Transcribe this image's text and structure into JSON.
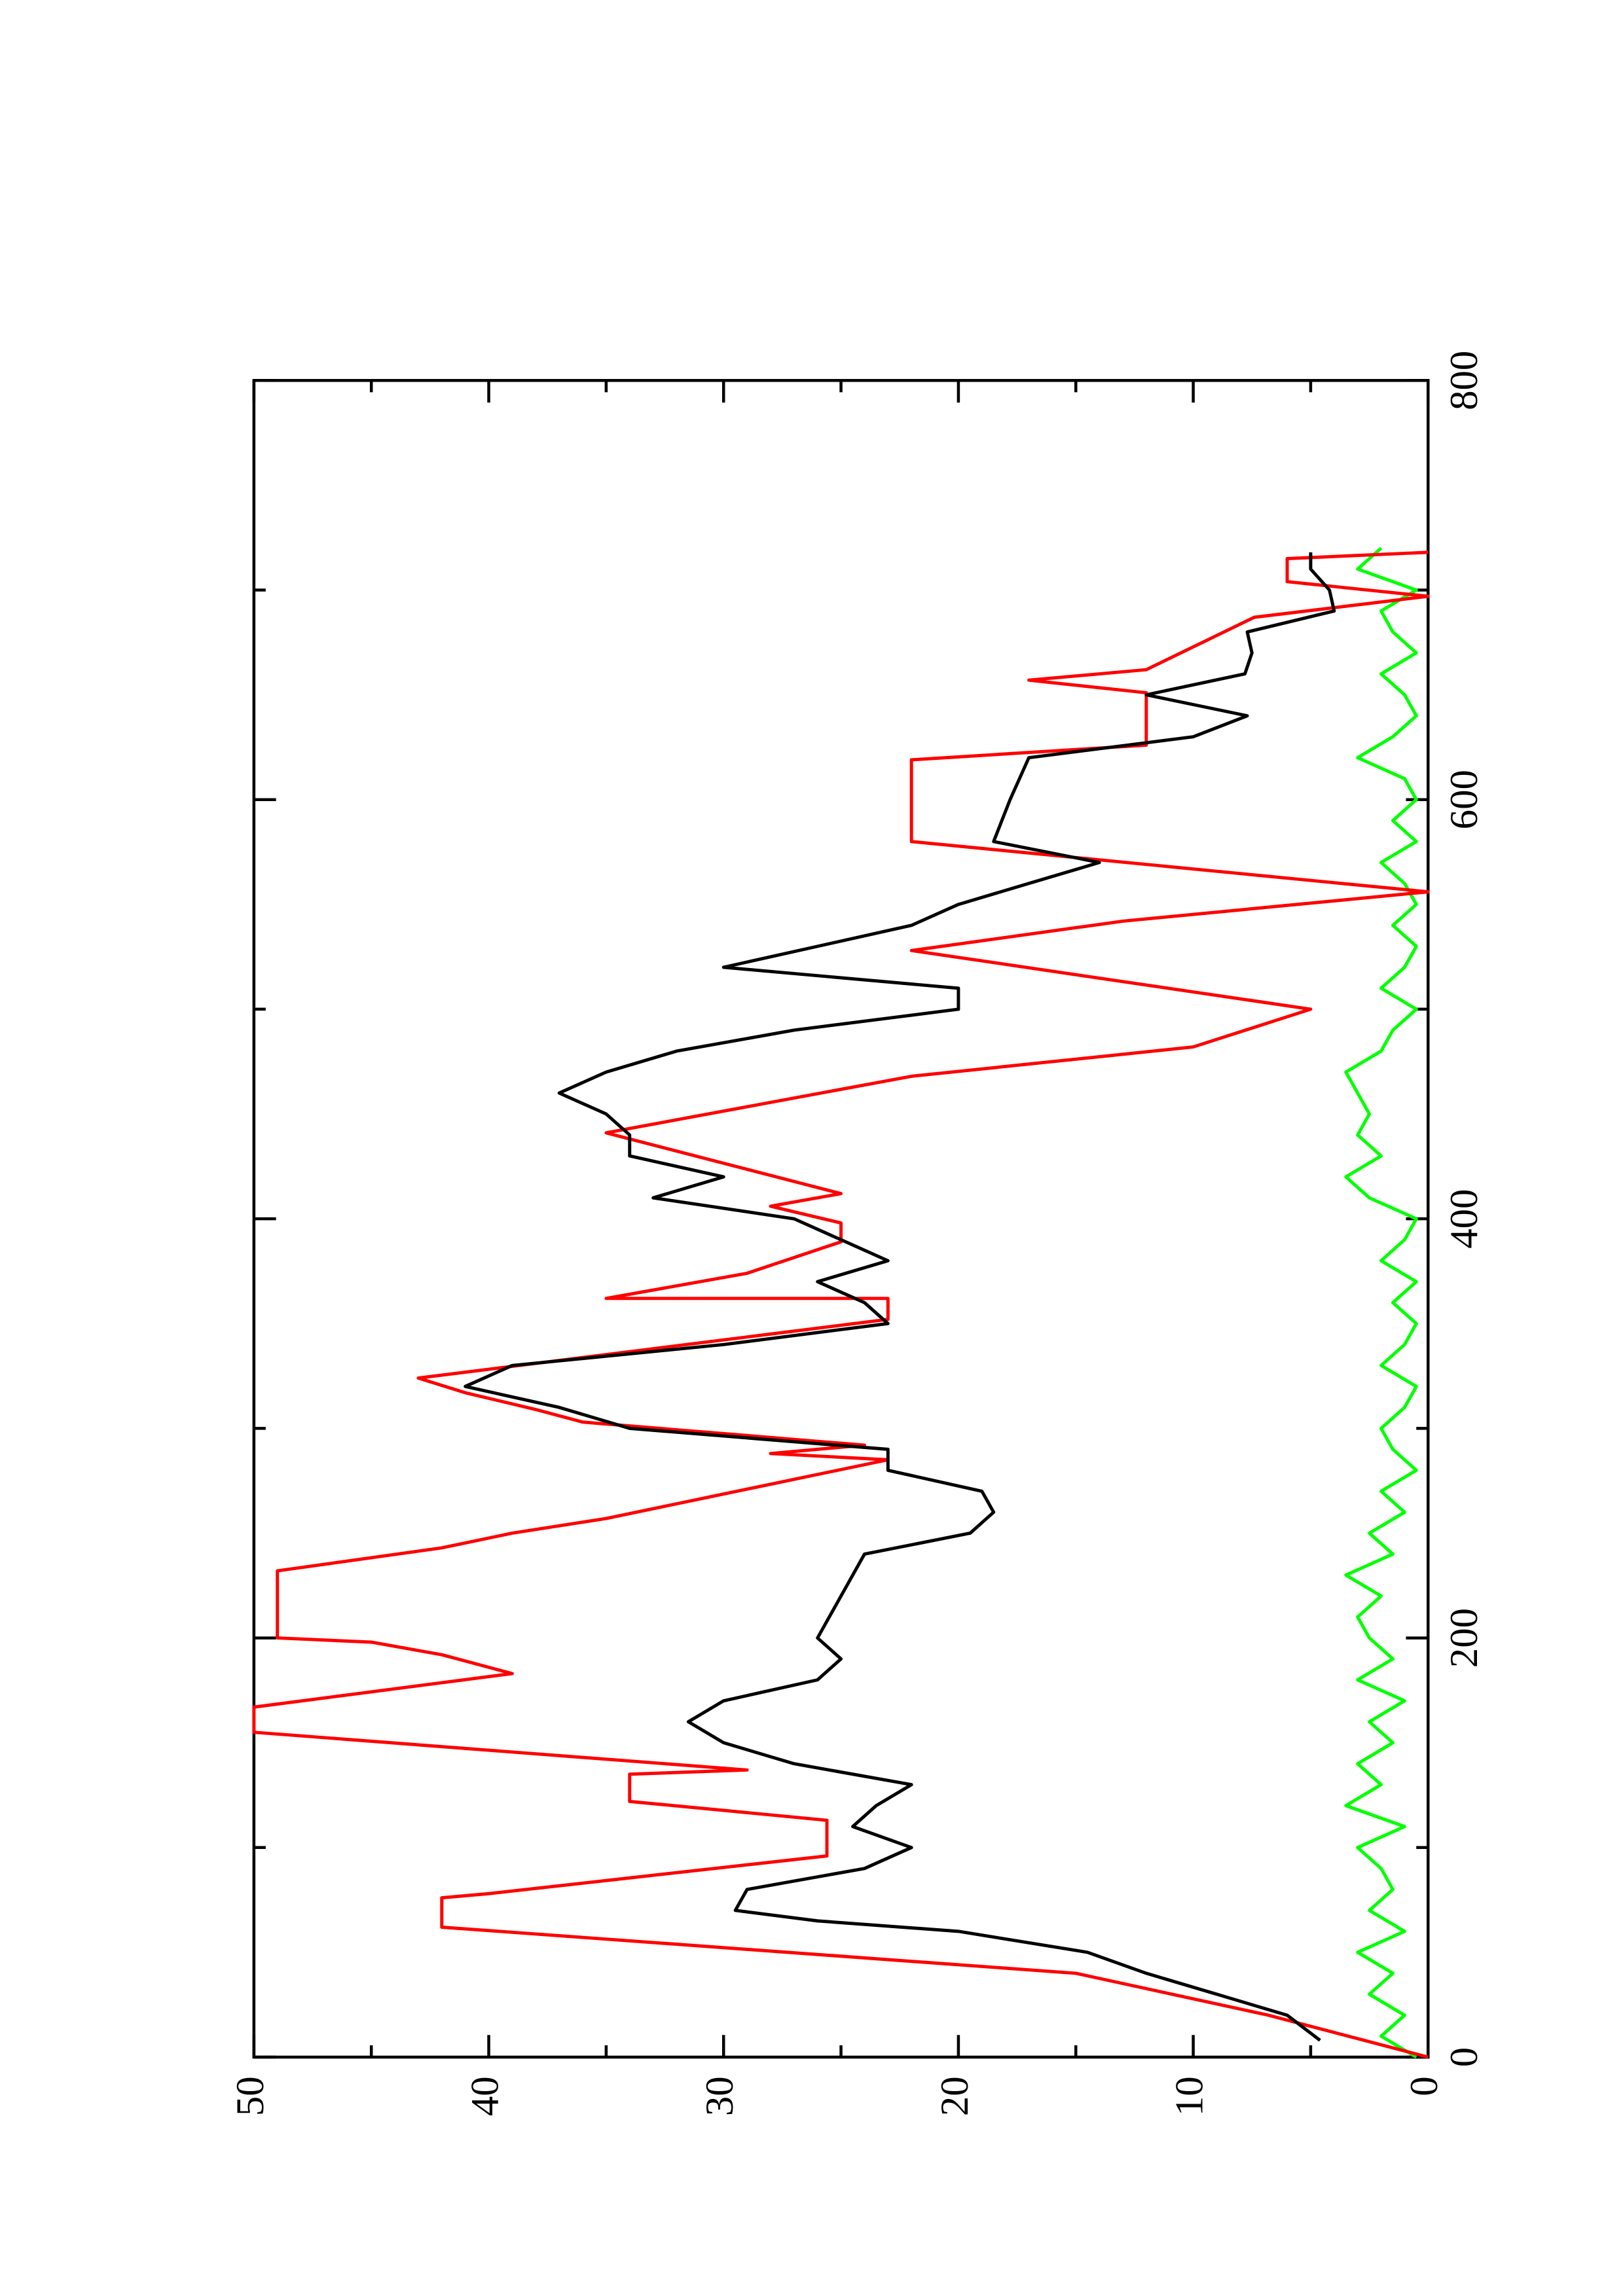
{
  "chart_data": {
    "type": "line",
    "orientation": "rotated-90",
    "xlim": [
      0,
      800
    ],
    "xticks": [
      0,
      200,
      400,
      600,
      800
    ],
    "xminorticks": [
      100,
      300,
      500,
      700
    ],
    "ylim": [
      0,
      50
    ],
    "yticks": [
      0,
      10,
      20,
      30,
      40,
      50
    ],
    "yminorticks": [
      5,
      15,
      25,
      35,
      45
    ],
    "grid": false,
    "series": [
      {
        "color": "#000000",
        "x": [
          8,
          20,
          30,
          40,
          50,
          60,
          65,
          70,
          80,
          90,
          100,
          110,
          120,
          130,
          140,
          150,
          160,
          170,
          180,
          190,
          200,
          210,
          220,
          230,
          240,
          250,
          260,
          270,
          280,
          290,
          300,
          310,
          320,
          330,
          340,
          350,
          360,
          370,
          380,
          390,
          400,
          410,
          420,
          430,
          440,
          450,
          460,
          470,
          480,
          490,
          500,
          510,
          520,
          530,
          540,
          550,
          560,
          570,
          580,
          600,
          620,
          630,
          640,
          650,
          660,
          670,
          680,
          690,
          700,
          710,
          718
        ],
        "values": [
          4.6,
          6,
          9,
          12,
          14.5,
          20,
          26,
          29.5,
          29,
          24,
          22,
          24.5,
          23.5,
          22,
          27,
          30,
          31.5,
          30,
          26,
          25,
          26,
          25.5,
          25,
          24.5,
          24,
          19.5,
          18.5,
          19,
          23,
          23,
          34,
          37,
          41,
          39,
          30,
          23,
          24,
          26,
          23,
          25,
          27,
          33,
          30,
          34,
          34,
          35,
          37,
          35,
          32,
          27,
          20,
          20,
          30,
          26,
          22,
          20,
          17,
          14,
          18.5,
          17.8,
          17,
          10,
          7.7,
          12,
          7.8,
          7.5,
          7.7,
          4,
          4.2,
          5,
          5
        ]
      },
      {
        "color": "#ff0000",
        "x": [
          0,
          20,
          40,
          62,
          76,
          78,
          96,
          113,
          122,
          135,
          137,
          155,
          167,
          183,
          192,
          198,
          200,
          232,
          243,
          250,
          257,
          271,
          285,
          288,
          292,
          303,
          309,
          317,
          324,
          345,
          352,
          362,
          362,
          374,
          389,
          398,
          406,
          412,
          441,
          468,
          482,
          500,
          528,
          542,
          556,
          580,
          619,
          626,
          651,
          657,
          662,
          687,
          697,
          704,
          715,
          718
        ],
        "values": [
          0,
          6.8,
          15,
          42,
          42,
          40,
          25.6,
          25.6,
          34,
          34,
          29,
          50,
          50,
          39,
          42,
          45,
          49,
          49,
          42,
          39,
          35,
          29,
          23,
          28,
          24,
          36,
          38,
          41,
          43,
          28,
          23,
          23,
          35,
          29,
          25,
          25,
          28,
          25,
          35,
          22,
          10,
          5,
          22,
          13,
          0,
          22,
          22,
          12,
          12,
          17,
          12,
          7.4,
          0,
          6,
          6,
          0
        ]
      },
      {
        "color": "#00ff00",
        "x": [
          0,
          10,
          20,
          30,
          40,
          50,
          60,
          70,
          80,
          90,
          100,
          110,
          120,
          130,
          140,
          150,
          160,
          170,
          180,
          190,
          200,
          210,
          220,
          230,
          240,
          250,
          260,
          270,
          280,
          290,
          300,
          310,
          320,
          330,
          340,
          350,
          360,
          370,
          380,
          390,
          400,
          410,
          420,
          430,
          440,
          450,
          460,
          470,
          480,
          490,
          500,
          510,
          520,
          530,
          540,
          550,
          560,
          570,
          580,
          590,
          600,
          610,
          620,
          630,
          640,
          650,
          660,
          670,
          680,
          690,
          700,
          710,
          720
        ],
        "values": [
          0.5,
          2,
          1,
          2.5,
          1.5,
          3,
          1,
          2.5,
          1.5,
          2,
          3,
          1,
          3.5,
          2,
          3,
          1.5,
          2.5,
          1,
          3,
          1.5,
          2.5,
          3,
          2,
          3.5,
          1.5,
          2.5,
          1,
          2,
          0.5,
          1.5,
          2,
          1,
          0.5,
          2,
          1,
          0.5,
          1.5,
          0.5,
          2,
          1,
          0.5,
          2.5,
          3.5,
          2,
          3,
          2.5,
          3,
          3.5,
          2,
          1.5,
          0.5,
          2,
          1,
          0.5,
          1.5,
          0.5,
          1,
          2,
          0.5,
          1.5,
          0.5,
          1,
          3,
          1.5,
          0.5,
          1,
          2,
          0.5,
          1.5,
          2,
          0.5,
          3,
          2
        ]
      }
    ]
  }
}
